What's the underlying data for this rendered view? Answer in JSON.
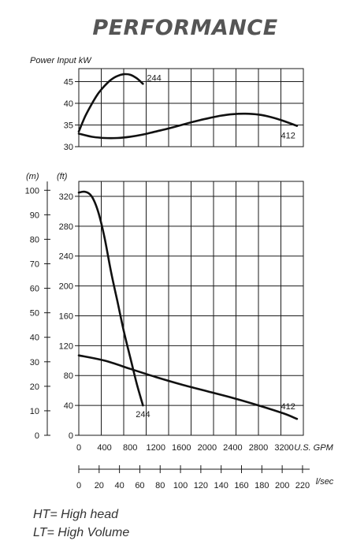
{
  "title": "PERFORMANCE",
  "chart_data": [
    {
      "type": "line",
      "ylabel": "Power Input kW",
      "x_unit": "U.S. GPM",
      "xlim": [
        0,
        3500
      ],
      "ylim": [
        30,
        48
      ],
      "yticks": [
        30,
        35,
        40,
        45
      ],
      "grid": true,
      "series": [
        {
          "name": "244",
          "x": [
            0,
            100,
            200,
            300,
            400,
            500,
            600,
            700,
            800,
            900,
            1000
          ],
          "y": [
            33.5,
            37.0,
            39.8,
            42.2,
            44.0,
            45.4,
            46.3,
            46.7,
            46.6,
            45.8,
            44.5
          ]
        },
        {
          "name": "412",
          "x": [
            0,
            200,
            400,
            600,
            800,
            1000,
            1200,
            1400,
            1600,
            1800,
            2000,
            2200,
            2400,
            2600,
            2800,
            3000,
            3200,
            3400
          ],
          "y": [
            33.0,
            32.3,
            32.0,
            32.0,
            32.3,
            32.8,
            33.5,
            34.2,
            35.0,
            35.8,
            36.5,
            37.1,
            37.5,
            37.6,
            37.4,
            36.8,
            35.9,
            34.8
          ]
        }
      ]
    },
    {
      "type": "line",
      "ylabel_left": "(m)",
      "ylabel_right": "(ft)",
      "xlabel": "U.S. GPM",
      "xlabel_secondary": "l/sec",
      "xlim": [
        0,
        3500
      ],
      "ylim_ft": [
        0,
        340
      ],
      "ylim_m": [
        0,
        103.6
      ],
      "x_ticks_gpm": [
        "0",
        "400",
        "800",
        "1200",
        "1600",
        "2000",
        "2400",
        "2800",
        "3200"
      ],
      "x_ticks_lsec": [
        "0",
        "20",
        "40",
        "60",
        "80",
        "100",
        "120",
        "140",
        "160",
        "180",
        "200",
        "220"
      ],
      "y_ticks_ft": [
        "0",
        "40",
        "80",
        "120",
        "160",
        "200",
        "240",
        "280",
        "320"
      ],
      "y_ticks_m": [
        "0",
        "10",
        "20",
        "30",
        "40",
        "50",
        "60",
        "70",
        "80",
        "90",
        "100"
      ],
      "series": [
        {
          "name": "244",
          "x": [
            0,
            100,
            200,
            300,
            400,
            500,
            600,
            700,
            800,
            900,
            1000
          ],
          "y": [
            325,
            326,
            320,
            300,
            265,
            220,
            180,
            140,
            105,
            70,
            40
          ]
        },
        {
          "name": "412",
          "x": [
            0,
            400,
            800,
            1200,
            1600,
            2000,
            2400,
            2800,
            3200,
            3400
          ],
          "y": [
            107,
            100,
            89,
            78,
            68,
            59,
            50,
            40,
            29,
            22
          ]
        }
      ]
    }
  ],
  "legend": {
    "ht": "HT= High head",
    "lt": "LT= High Volume"
  }
}
